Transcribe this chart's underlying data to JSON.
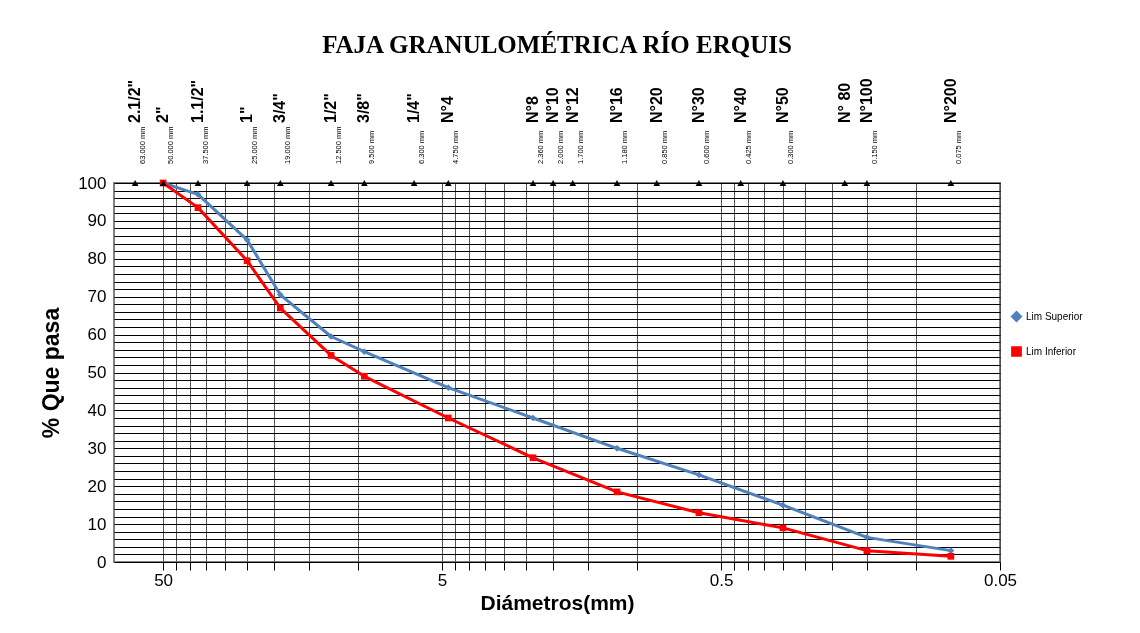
{
  "chart_data": {
    "type": "line",
    "title": "FAJA GRANULOMÉTRICA RÍO ERQUIS",
    "xlabel": "Diámetros(mm)",
    "ylabel": "% Que pasa",
    "x": [
      50,
      37.5,
      25,
      19,
      12.5,
      9.5,
      4.75,
      2.36,
      1.18,
      0.6,
      0.3,
      0.15,
      0.075
    ],
    "series": [
      {
        "name": "Lim Superior",
        "color": "#4f81bd",
        "marker": "diamond",
        "values": [
          100,
          97,
          85,
          70.5,
          59.5,
          55.5,
          46,
          38,
          30,
          23,
          15,
          6.5,
          3
        ]
      },
      {
        "name": "Lim Inferior",
        "color": "#ff0000",
        "marker": "square",
        "values": [
          100,
          93.5,
          79.5,
          67,
          54.5,
          49,
          38,
          27.5,
          18.5,
          13,
          9,
          3,
          1.5
        ]
      },
      {
        "type": "scatter",
        "color": "#000000",
        "marker": "triangle",
        "x": [
          63,
          50,
          37.5,
          25,
          19,
          12.5,
          9.5,
          6.3,
          4.75,
          2.36,
          2.0,
          1.7,
          1.18,
          0.85,
          0.6,
          0.425,
          0.3,
          0.18,
          0.15,
          0.075
        ],
        "values": [
          100,
          100,
          100,
          100,
          100,
          100,
          100,
          100,
          100,
          100,
          100,
          100,
          100,
          100,
          100,
          100,
          100,
          100,
          100,
          100
        ]
      }
    ],
    "log": "x",
    "xlim": [
      75,
      0.05
    ],
    "xticks": [
      50,
      {
        "value": 45,
        "label": null
      },
      {
        "value": 40,
        "label": null
      },
      {
        "value": 35,
        "label": null
      },
      {
        "value": 30,
        "label": null
      },
      {
        "value": 25,
        "label": null
      },
      {
        "value": 20,
        "label": null
      },
      {
        "value": 15,
        "label": null
      },
      {
        "value": 10,
        "label": null
      },
      5,
      {
        "value": 4.5,
        "label": null
      },
      {
        "value": 4,
        "label": null
      },
      {
        "value": 3.5,
        "label": null
      },
      {
        "value": 3,
        "label": null
      },
      {
        "value": 2.5,
        "label": null
      },
      {
        "value": 2,
        "label": null
      },
      {
        "value": 1.5,
        "label": null
      },
      {
        "value": 1,
        "label": null
      },
      0.5,
      {
        "value": 0.45,
        "label": null
      },
      {
        "value": 0.4,
        "label": null
      },
      {
        "value": 0.35,
        "label": null
      },
      {
        "value": 0.3,
        "label": null
      },
      {
        "value": 0.25,
        "label": null
      },
      {
        "value": 0.2,
        "label": null
      },
      {
        "value": 0.15,
        "label": null
      },
      {
        "value": 0.1,
        "label": null
      },
      0.05
    ],
    "annotations": [
      "2.1/2\"",
      "2\"",
      "1.1/2\"",
      "1\"",
      "3/4\"",
      "1/2\"",
      "3/8\"",
      "1/4\"",
      "N°4",
      "N°8",
      "N°10",
      "N°12",
      "N°16",
      "N°20",
      "N°30",
      "N°40",
      "N°50",
      "N° 80",
      "N°100",
      "N°200",
      {
        "text": "63.000 mm",
        "x": 63,
        "y": 100
      },
      {
        "text": "50.000 mm",
        "x": 50,
        "y": 100
      },
      {
        "text": "37.500 mm",
        "x": 37.5,
        "y": 100
      },
      {
        "text": "25.000 mm",
        "x": 25,
        "y": 100
      },
      {
        "text": "19.000 mm",
        "x": 19,
        "y": 100
      },
      {
        "text": "12.500 mm",
        "x": 12.5,
        "y": 100
      },
      {
        "text": "9.500 mm",
        "x": 9.5,
        "y": 100
      },
      {
        "text": "6.300 mm",
        "x": 6.3,
        "y": 100
      },
      {
        "text": "4.750 mm",
        "x": 4.75,
        "y": 100
      },
      {
        "text": "2.360 mm",
        "x": 2.36,
        "y": 100
      },
      {
        "text": "2.000 mm",
        "x": 2.0,
        "y": 100
      },
      {
        "text": "1.700 mm",
        "x": 1.7,
        "y": 100
      },
      {
        "text": "1.180 mm",
        "x": 1.18,
        "y": 100
      },
      {
        "text": "0.850 mm",
        "x": 0.85,
        "y": 100
      },
      {
        "text": "0.600 mm",
        "x": 0.6,
        "y": 100
      },
      {
        "text": "0.425 mm",
        "x": 0.425,
        "y": 100
      },
      {
        "text": "0.300 mm",
        "x": 0.3,
        "y": 100
      },
      {
        "text": "0.150 mm",
        "x": 0.15,
        "y": 100
      },
      {
        "text": "0.075 mm",
        "x": 0.075,
        "y": 100
      }
    ],
    "ylim": [
      0,
      100
    ],
    "yticks": [
      0,
      {
        "value": 2,
        "label": null
      },
      {
        "value": 4,
        "label": null
      },
      {
        "value": 6,
        "label": null
      },
      {
        "value": 8,
        "label": null
      },
      10,
      {
        "value": 12,
        "label": null
      },
      {
        "value": 14,
        "label": null
      },
      {
        "value": 16,
        "label": null
      },
      {
        "value": 18,
        "label": null
      },
      20,
      {
        "value": 22,
        "label": null
      },
      {
        "value": 24,
        "label": null
      },
      {
        "value": 26,
        "label": null
      },
      {
        "value": 28,
        "label": null
      },
      30,
      {
        "value": 32,
        "label": null
      },
      {
        "value": 34,
        "label": null
      },
      {
        "value": 36,
        "label": null
      },
      {
        "value": 38,
        "label": null
      },
      40,
      {
        "value": 42,
        "label": null
      },
      {
        "value": 44,
        "label": null
      },
      {
        "value": 46,
        "label": null
      },
      {
        "value": 48,
        "label": null
      },
      50,
      {
        "value": 52,
        "label": null
      },
      {
        "value": 54,
        "label": null
      },
      {
        "value": 56,
        "label": null
      },
      {
        "value": 58,
        "label": null
      },
      60,
      {
        "value": 62,
        "label": null
      },
      {
        "value": 64,
        "label": null
      },
      {
        "value": 66,
        "label": null
      },
      {
        "value": 68,
        "label": null
      },
      70,
      {
        "value": 72,
        "label": null
      },
      {
        "value": 74,
        "label": null
      },
      {
        "value": 76,
        "label": null
      },
      {
        "value": 78,
        "label": null
      },
      80,
      {
        "value": 82,
        "label": null
      },
      {
        "value": 84,
        "label": null
      },
      {
        "value": 86,
        "label": null
      },
      {
        "value": 88,
        "label": null
      },
      90,
      {
        "value": 92,
        "label": null
      },
      {
        "value": 94,
        "label": null
      },
      {
        "value": 96,
        "label": null
      },
      {
        "value": 98,
        "label": null
      },
      100
    ],
    "grid": true,
    "legend": "right",
    "line_style": "solid"
  }
}
